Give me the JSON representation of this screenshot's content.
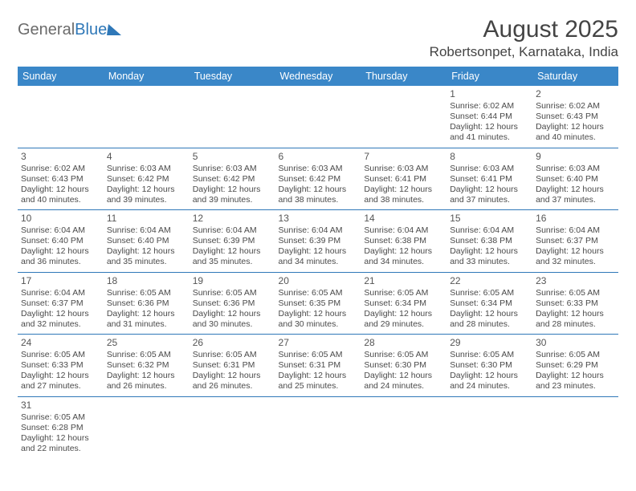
{
  "logo": {
    "text1": "General",
    "text2": "Blue"
  },
  "title": "August 2025",
  "location": "Robertsonpet, Karnataka, India",
  "dayHeaders": [
    "Sunday",
    "Monday",
    "Tuesday",
    "Wednesday",
    "Thursday",
    "Friday",
    "Saturday"
  ],
  "colors": {
    "header_bg": "#3a87c8",
    "header_text": "#ffffff",
    "border": "#2f78b8",
    "body_text": "#4a4a4a"
  },
  "weeks": [
    [
      null,
      null,
      null,
      null,
      null,
      {
        "n": "1",
        "sr": "Sunrise: 6:02 AM",
        "ss": "Sunset: 6:44 PM",
        "d1": "Daylight: 12 hours",
        "d2": "and 41 minutes."
      },
      {
        "n": "2",
        "sr": "Sunrise: 6:02 AM",
        "ss": "Sunset: 6:43 PM",
        "d1": "Daylight: 12 hours",
        "d2": "and 40 minutes."
      }
    ],
    [
      {
        "n": "3",
        "sr": "Sunrise: 6:02 AM",
        "ss": "Sunset: 6:43 PM",
        "d1": "Daylight: 12 hours",
        "d2": "and 40 minutes."
      },
      {
        "n": "4",
        "sr": "Sunrise: 6:03 AM",
        "ss": "Sunset: 6:42 PM",
        "d1": "Daylight: 12 hours",
        "d2": "and 39 minutes."
      },
      {
        "n": "5",
        "sr": "Sunrise: 6:03 AM",
        "ss": "Sunset: 6:42 PM",
        "d1": "Daylight: 12 hours",
        "d2": "and 39 minutes."
      },
      {
        "n": "6",
        "sr": "Sunrise: 6:03 AM",
        "ss": "Sunset: 6:42 PM",
        "d1": "Daylight: 12 hours",
        "d2": "and 38 minutes."
      },
      {
        "n": "7",
        "sr": "Sunrise: 6:03 AM",
        "ss": "Sunset: 6:41 PM",
        "d1": "Daylight: 12 hours",
        "d2": "and 38 minutes."
      },
      {
        "n": "8",
        "sr": "Sunrise: 6:03 AM",
        "ss": "Sunset: 6:41 PM",
        "d1": "Daylight: 12 hours",
        "d2": "and 37 minutes."
      },
      {
        "n": "9",
        "sr": "Sunrise: 6:03 AM",
        "ss": "Sunset: 6:40 PM",
        "d1": "Daylight: 12 hours",
        "d2": "and 37 minutes."
      }
    ],
    [
      {
        "n": "10",
        "sr": "Sunrise: 6:04 AM",
        "ss": "Sunset: 6:40 PM",
        "d1": "Daylight: 12 hours",
        "d2": "and 36 minutes."
      },
      {
        "n": "11",
        "sr": "Sunrise: 6:04 AM",
        "ss": "Sunset: 6:40 PM",
        "d1": "Daylight: 12 hours",
        "d2": "and 35 minutes."
      },
      {
        "n": "12",
        "sr": "Sunrise: 6:04 AM",
        "ss": "Sunset: 6:39 PM",
        "d1": "Daylight: 12 hours",
        "d2": "and 35 minutes."
      },
      {
        "n": "13",
        "sr": "Sunrise: 6:04 AM",
        "ss": "Sunset: 6:39 PM",
        "d1": "Daylight: 12 hours",
        "d2": "and 34 minutes."
      },
      {
        "n": "14",
        "sr": "Sunrise: 6:04 AM",
        "ss": "Sunset: 6:38 PM",
        "d1": "Daylight: 12 hours",
        "d2": "and 34 minutes."
      },
      {
        "n": "15",
        "sr": "Sunrise: 6:04 AM",
        "ss": "Sunset: 6:38 PM",
        "d1": "Daylight: 12 hours",
        "d2": "and 33 minutes."
      },
      {
        "n": "16",
        "sr": "Sunrise: 6:04 AM",
        "ss": "Sunset: 6:37 PM",
        "d1": "Daylight: 12 hours",
        "d2": "and 32 minutes."
      }
    ],
    [
      {
        "n": "17",
        "sr": "Sunrise: 6:04 AM",
        "ss": "Sunset: 6:37 PM",
        "d1": "Daylight: 12 hours",
        "d2": "and 32 minutes."
      },
      {
        "n": "18",
        "sr": "Sunrise: 6:05 AM",
        "ss": "Sunset: 6:36 PM",
        "d1": "Daylight: 12 hours",
        "d2": "and 31 minutes."
      },
      {
        "n": "19",
        "sr": "Sunrise: 6:05 AM",
        "ss": "Sunset: 6:36 PM",
        "d1": "Daylight: 12 hours",
        "d2": "and 30 minutes."
      },
      {
        "n": "20",
        "sr": "Sunrise: 6:05 AM",
        "ss": "Sunset: 6:35 PM",
        "d1": "Daylight: 12 hours",
        "d2": "and 30 minutes."
      },
      {
        "n": "21",
        "sr": "Sunrise: 6:05 AM",
        "ss": "Sunset: 6:34 PM",
        "d1": "Daylight: 12 hours",
        "d2": "and 29 minutes."
      },
      {
        "n": "22",
        "sr": "Sunrise: 6:05 AM",
        "ss": "Sunset: 6:34 PM",
        "d1": "Daylight: 12 hours",
        "d2": "and 28 minutes."
      },
      {
        "n": "23",
        "sr": "Sunrise: 6:05 AM",
        "ss": "Sunset: 6:33 PM",
        "d1": "Daylight: 12 hours",
        "d2": "and 28 minutes."
      }
    ],
    [
      {
        "n": "24",
        "sr": "Sunrise: 6:05 AM",
        "ss": "Sunset: 6:33 PM",
        "d1": "Daylight: 12 hours",
        "d2": "and 27 minutes."
      },
      {
        "n": "25",
        "sr": "Sunrise: 6:05 AM",
        "ss": "Sunset: 6:32 PM",
        "d1": "Daylight: 12 hours",
        "d2": "and 26 minutes."
      },
      {
        "n": "26",
        "sr": "Sunrise: 6:05 AM",
        "ss": "Sunset: 6:31 PM",
        "d1": "Daylight: 12 hours",
        "d2": "and 26 minutes."
      },
      {
        "n": "27",
        "sr": "Sunrise: 6:05 AM",
        "ss": "Sunset: 6:31 PM",
        "d1": "Daylight: 12 hours",
        "d2": "and 25 minutes."
      },
      {
        "n": "28",
        "sr": "Sunrise: 6:05 AM",
        "ss": "Sunset: 6:30 PM",
        "d1": "Daylight: 12 hours",
        "d2": "and 24 minutes."
      },
      {
        "n": "29",
        "sr": "Sunrise: 6:05 AM",
        "ss": "Sunset: 6:30 PM",
        "d1": "Daylight: 12 hours",
        "d2": "and 24 minutes."
      },
      {
        "n": "30",
        "sr": "Sunrise: 6:05 AM",
        "ss": "Sunset: 6:29 PM",
        "d1": "Daylight: 12 hours",
        "d2": "and 23 minutes."
      }
    ],
    [
      {
        "n": "31",
        "sr": "Sunrise: 6:05 AM",
        "ss": "Sunset: 6:28 PM",
        "d1": "Daylight: 12 hours",
        "d2": "and 22 minutes."
      },
      null,
      null,
      null,
      null,
      null,
      null
    ]
  ]
}
